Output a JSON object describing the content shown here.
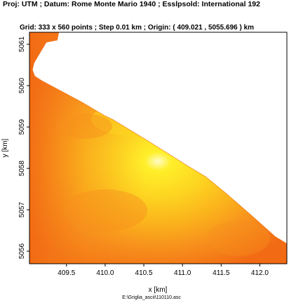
{
  "header": {
    "line1": "Proj: UTM ; Datum: Rome Monte Mario 1940 ; Esslpsold: International 192",
    "line2": "Grid: 333 x 560 points ; Step 0.01 km ; Origin: ( 409.021 , 5055.696 ) km"
  },
  "source_file": "E:\\Griglia_ascii\\110110.asc",
  "chart_data": {
    "type": "heatmap",
    "xlabel": "x [km]",
    "ylabel": "y [km]",
    "xlim": [
      409.021,
      412.35
    ],
    "ylim": [
      5055.696,
      5061.29
    ],
    "x_ticks": [
      409.5,
      410.0,
      410.5,
      411.0,
      411.5,
      412.0
    ],
    "y_ticks": [
      5056,
      5057,
      5058,
      5059,
      5060,
      5061
    ],
    "x_tick_labels": [
      "409.5",
      "410.0",
      "410.5",
      "411.0",
      "411.5",
      "412.0"
    ],
    "y_tick_labels": [
      "5056",
      "5057",
      "5058",
      "5059",
      "5060",
      "5061"
    ],
    "grid": false,
    "colormap": [
      "#f26a14",
      "#f7901c",
      "#fbb41c",
      "#fdd521",
      "#ffef2a",
      "#fffcc8"
    ],
    "domain_boundary": [
      [
        409.021,
        5061.29
      ],
      [
        409.4,
        5061.29
      ],
      [
        409.38,
        5061.1
      ],
      [
        409.24,
        5061.05
      ],
      [
        409.16,
        5060.8
      ],
      [
        409.08,
        5060.55
      ],
      [
        409.06,
        5060.38
      ],
      [
        409.09,
        5060.23
      ],
      [
        409.18,
        5060.12
      ],
      [
        409.4,
        5059.9
      ],
      [
        409.7,
        5059.6
      ],
      [
        410.0,
        5059.27
      ],
      [
        410.1,
        5059.18
      ],
      [
        410.55,
        5058.67
      ],
      [
        411.05,
        5058.08
      ],
      [
        411.3,
        5057.8
      ],
      [
        411.55,
        5057.42
      ],
      [
        411.9,
        5056.85
      ],
      [
        412.2,
        5056.35
      ],
      [
        412.35,
        5056.18
      ],
      [
        412.35,
        5055.696
      ],
      [
        409.021,
        5055.696
      ]
    ],
    "high_value_center": [
      410.9,
      5058.3
    ]
  }
}
